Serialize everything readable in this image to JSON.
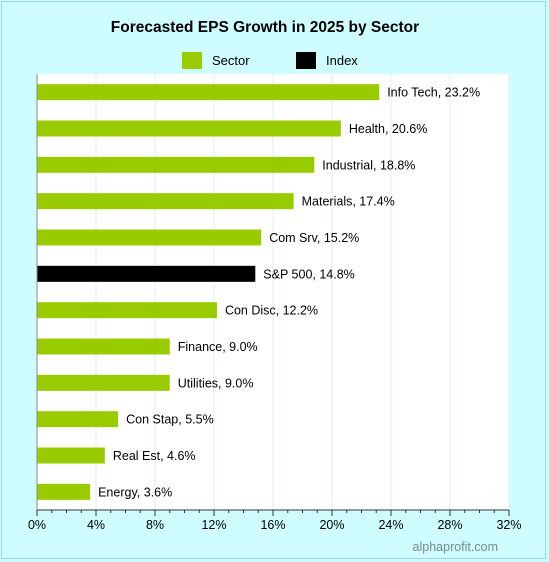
{
  "chart_data": {
    "type": "bar",
    "orientation": "horizontal",
    "title": "Forecasted EPS Growth in 2025 by Sector",
    "legend": [
      {
        "name": "Sector",
        "color": "#99cc00"
      },
      {
        "name": "Index",
        "color": "#000000"
      }
    ],
    "legend_position": "top",
    "xlim": [
      0,
      32
    ],
    "x_ticks": [
      "0%",
      "4%",
      "8%",
      "12%",
      "16%",
      "20%",
      "24%",
      "28%",
      "32%"
    ],
    "grid": "vertical",
    "categories": [
      "Info Tech",
      "Health",
      "Industrial",
      "Materials",
      "Com Srv",
      "S&P 500",
      "Con Disc",
      "Finance",
      "Utilities",
      "Con Stap",
      "Real Est",
      "Energy"
    ],
    "values": [
      23.2,
      20.6,
      18.8,
      17.4,
      15.2,
      14.8,
      12.2,
      9.0,
      9.0,
      5.5,
      4.6,
      3.6
    ],
    "labels": [
      "Info Tech, 23.2%",
      "Health, 20.6%",
      "Industrial, 18.8%",
      "Materials, 17.4%",
      "Com Srv, 15.2%",
      "S&P 500, 14.8%",
      "Con Disc, 12.2%",
      "Finance, 9.0%",
      "Utilities, 9.0%",
      "Con Stap, 5.5%",
      "Real Est, 4.6%",
      "Energy, 3.6%"
    ],
    "bar_series": [
      "Sector",
      "Sector",
      "Sector",
      "Sector",
      "Sector",
      "Index",
      "Sector",
      "Sector",
      "Sector",
      "Sector",
      "Sector",
      "Sector"
    ]
  },
  "watermark": "alphaprofit.com",
  "colors": {
    "background": "#cffcfe",
    "plot_background": "#ffffff",
    "gridline": "#d6f2f8",
    "sector": "#99cc00",
    "index": "#000000"
  }
}
